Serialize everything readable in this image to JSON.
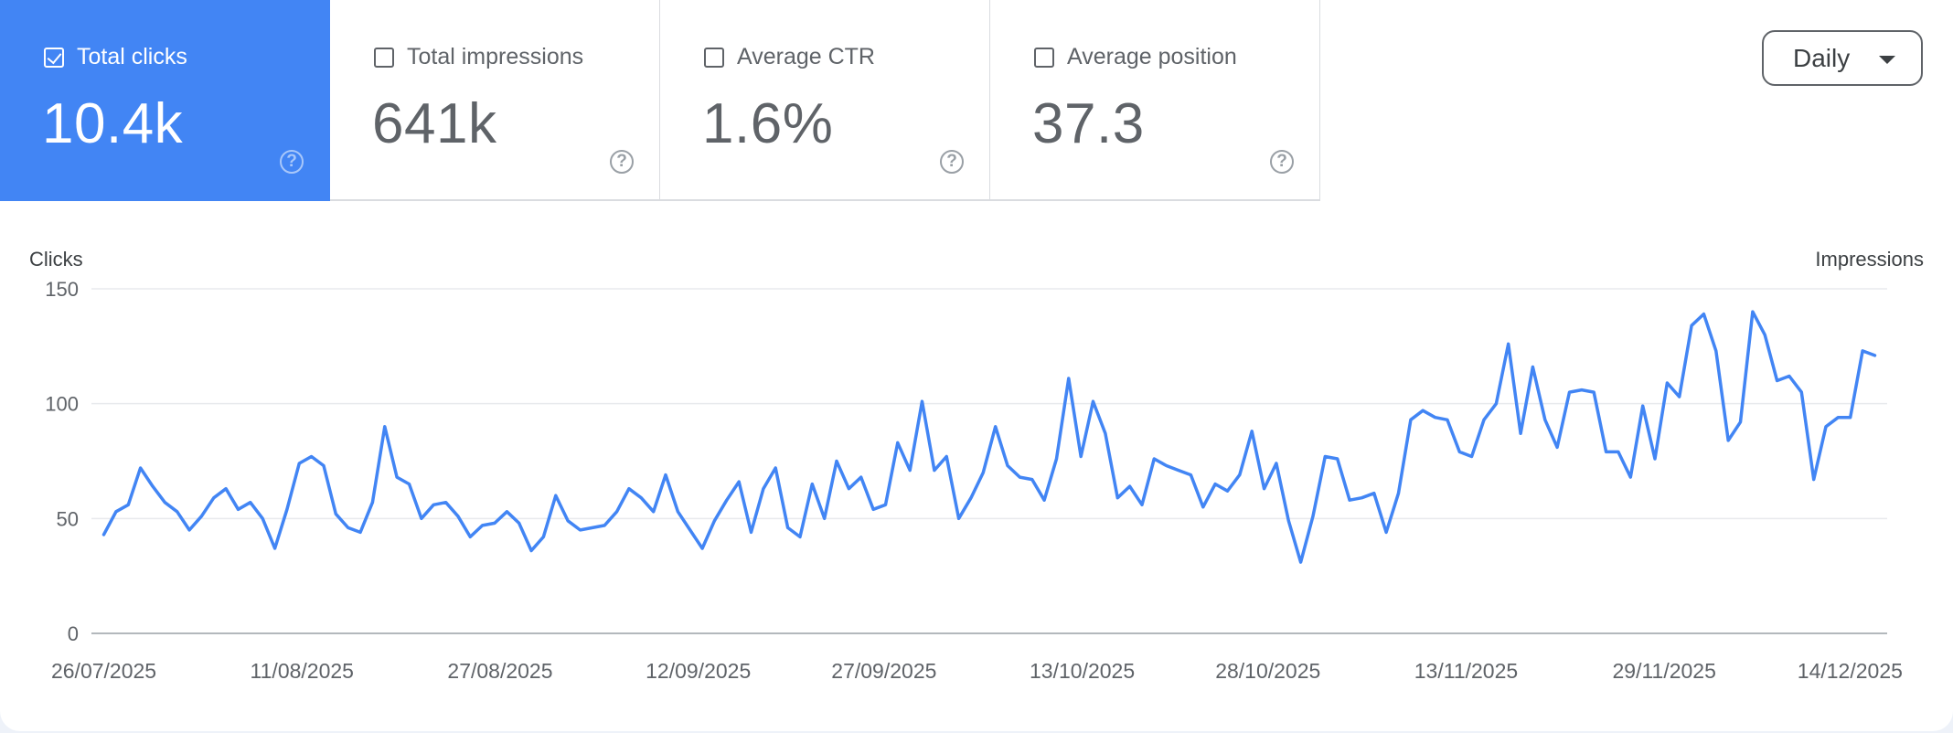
{
  "metrics": [
    {
      "label": "Total clicks",
      "value": "10.4k",
      "checked": true
    },
    {
      "label": "Total impressions",
      "value": "641k",
      "checked": false
    },
    {
      "label": "Average CTR",
      "value": "1.6%",
      "checked": false
    },
    {
      "label": "Average position",
      "value": "37.3",
      "checked": false
    }
  ],
  "help_glyph": "?",
  "granularity": {
    "selected": "Daily"
  },
  "colors": {
    "accent": "#4285f4",
    "line": "#4285f4",
    "grid": "#e8eaed"
  },
  "chart_data": {
    "type": "line",
    "title": "",
    "ylabel": "Clicks",
    "ylabel_right": "Impressions",
    "ylim": [
      0,
      150
    ],
    "yticks": [
      0,
      50,
      100,
      150
    ],
    "xlim": [
      "25/07/2025",
      "17/12/2025"
    ],
    "xticks": [
      "26/07/2025",
      "11/08/2025",
      "27/08/2025",
      "12/09/2025",
      "27/09/2025",
      "13/10/2025",
      "28/10/2025",
      "13/11/2025",
      "29/11/2025",
      "14/12/2025"
    ],
    "x_start": "26/07/2025",
    "x_end": "16/12/2025",
    "grid": true,
    "series": [
      {
        "name": "Clicks",
        "values": [
          43,
          53,
          56,
          72,
          64,
          57,
          53,
          45,
          51,
          59,
          63,
          54,
          57,
          50,
          37,
          54,
          74,
          77,
          73,
          52,
          46,
          44,
          57,
          90,
          68,
          65,
          50,
          56,
          57,
          51,
          42,
          47,
          48,
          53,
          48,
          36,
          42,
          60,
          49,
          45,
          46,
          47,
          53,
          63,
          59,
          53,
          69,
          53,
          45,
          37,
          49,
          58,
          66,
          44,
          63,
          72,
          46,
          42,
          65,
          50,
          75,
          63,
          68,
          54,
          56,
          83,
          71,
          101,
          71,
          77,
          50,
          59,
          70,
          90,
          73,
          68,
          67,
          58,
          76,
          111,
          77,
          101,
          87,
          59,
          64,
          56,
          76,
          73,
          71,
          69,
          55,
          65,
          62,
          69,
          88,
          63,
          74,
          49,
          31,
          51,
          77,
          76,
          58,
          59,
          61,
          44,
          61,
          93,
          97,
          94,
          93,
          79,
          77,
          93,
          100,
          126,
          87,
          116,
          93,
          81,
          105,
          106,
          105,
          79,
          79,
          68,
          99,
          76,
          109,
          103,
          134,
          139,
          123,
          84,
          92,
          140,
          130,
          110,
          112,
          105,
          67,
          90,
          94,
          94,
          123,
          121
        ]
      }
    ]
  }
}
